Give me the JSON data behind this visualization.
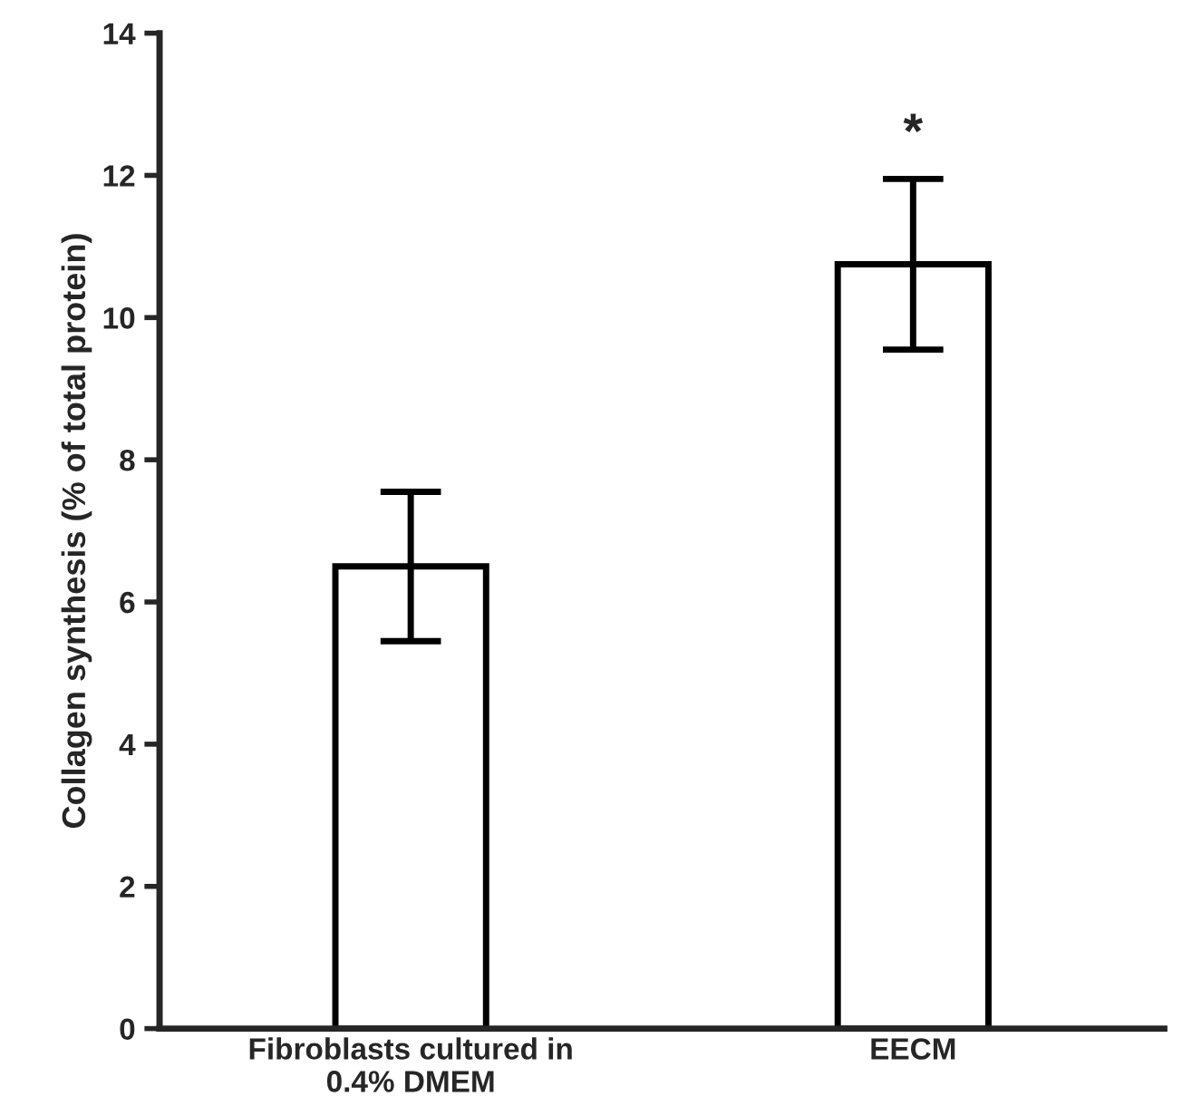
{
  "chart_data": {
    "type": "bar",
    "categories": [
      "Fibroblasts cultured in\n0.4% DMEM",
      "EECM"
    ],
    "values": [
      6.5,
      10.75
    ],
    "errors": [
      1.05,
      1.2
    ],
    "color": "#ffffff",
    "ylabel": "Collagen synthesis (% of total protein)",
    "ylim": [
      0,
      14
    ],
    "yticks": [
      0,
      2,
      4,
      6,
      8,
      10,
      12,
      14
    ],
    "grid": false,
    "annotations": [
      "*"
    ]
  }
}
